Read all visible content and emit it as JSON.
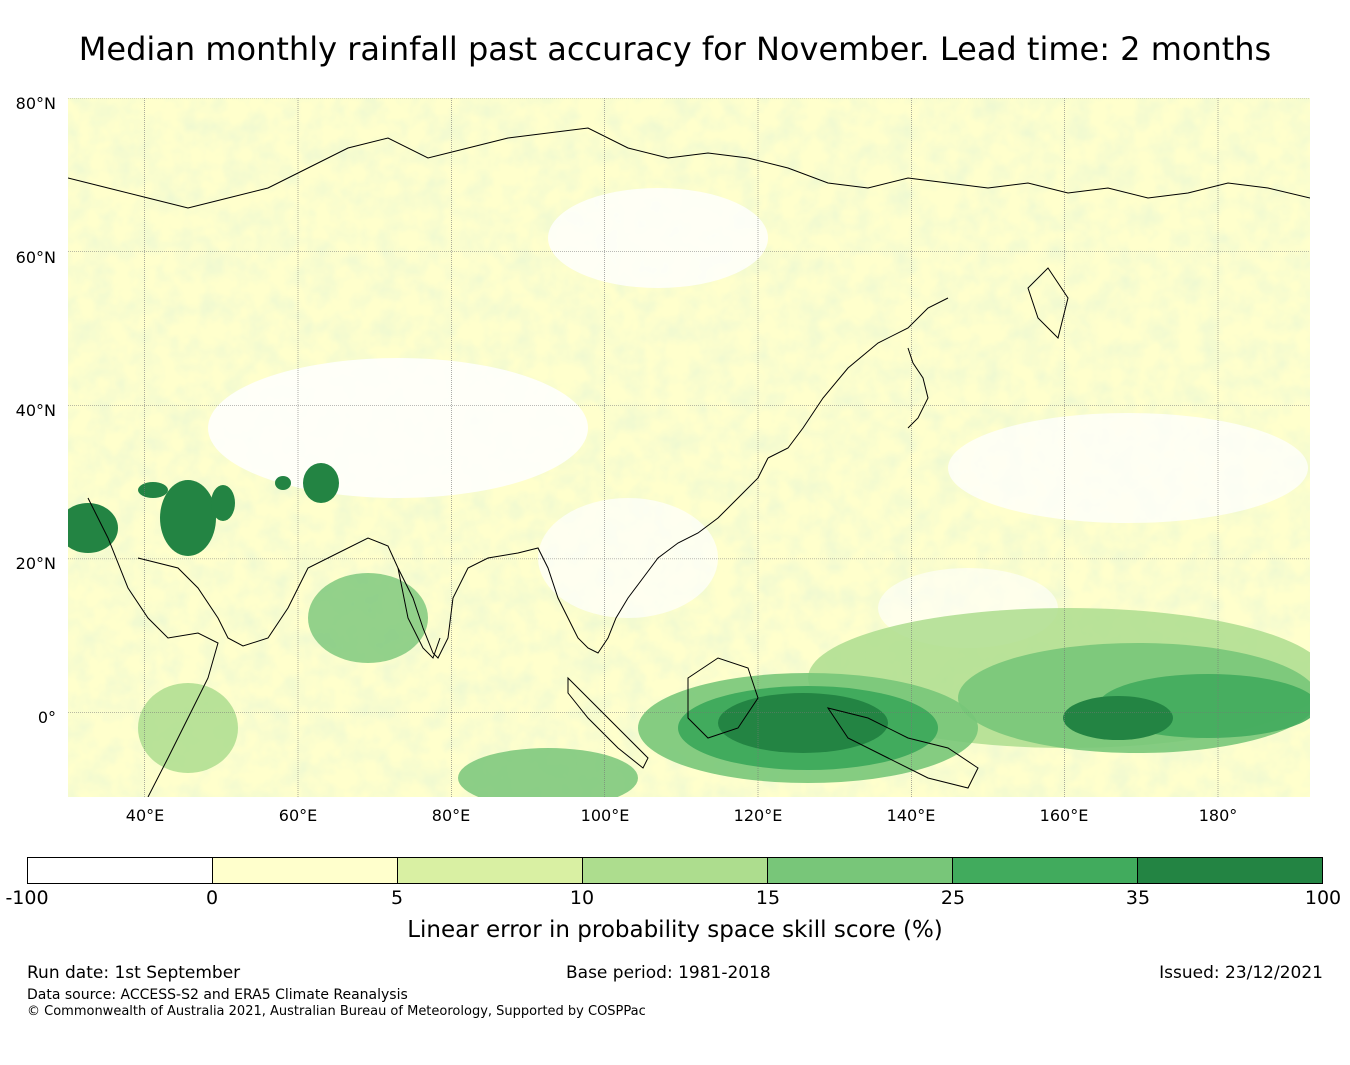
{
  "title": "Median monthly rainfall past accuracy for November. Lead time: 2 months",
  "map": {
    "lat_labels": [
      "80°N",
      "60°N",
      "40°N",
      "20°N",
      "0°"
    ],
    "lon_labels": [
      "40°E",
      "60°E",
      "80°E",
      "100°E",
      "120°E",
      "140°E",
      "160°E",
      "180°"
    ],
    "lon_range": [
      30,
      192
    ],
    "lat_range": [
      -11,
      80
    ],
    "grid": true
  },
  "colorbar": {
    "ticks": [
      "-100",
      "0",
      "5",
      "10",
      "15",
      "25",
      "35",
      "100"
    ],
    "colors": [
      "#ffffff",
      "#ffffcc",
      "#d9f0a3",
      "#addd8e",
      "#78c679",
      "#41ab5d",
      "#238443"
    ],
    "label": "Linear error in probability space skill score (%)"
  },
  "footer": {
    "run_date": "Run date: 1st September",
    "base_period": "Base period: 1981-2018",
    "issued": "Issued: 23/12/2021",
    "data_source": "Data source: ACCESS-S2 and ERA5 Climate Reanalysis",
    "copyright": "© Commonwealth of Australia 2021, Australian Bureau of Meteorology, Supported by COSPPac"
  }
}
